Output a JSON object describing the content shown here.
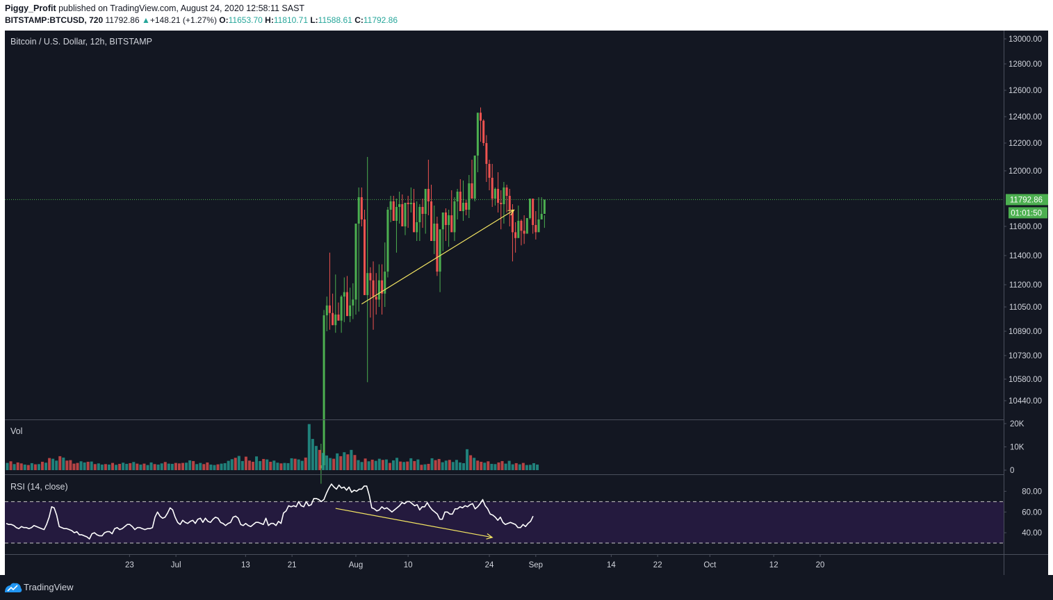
{
  "header": {
    "author": "Piggy_Profit",
    "published_text": "published on TradingView.com, August 24, 2020 12:58:11 SAST",
    "symbol": "BITSTAMP:BTCUSD, 720",
    "last": "11792.86",
    "change_arrow": "▲",
    "change": "+148.21 (+1.27%)",
    "o_label": "O:",
    "o_value": "11653.70",
    "h_label": "H:",
    "h_value": "11810.71",
    "l_label": "L:",
    "l_value": "11588.61",
    "c_label": "C:",
    "c_value": "11792.86"
  },
  "footer": {
    "brand": "TradingView",
    "logo_icon": "tradingview-logo-icon"
  },
  "colors": {
    "background": "#131722",
    "up": "#26a69a",
    "down": "#ef5350",
    "candle_up": "#4caf50",
    "candle_down": "#ef5350",
    "vol_up": "#26a69a",
    "vol_down": "#ef5350",
    "trendline": "#f5e663",
    "price_line": "#4caf50",
    "rsi_line": "#ffffff",
    "rsi_band": "#241a3e",
    "text": "#d1d4dc",
    "border": "#4a4f5c"
  },
  "chart_data": {
    "type": "candlestick",
    "title": "Bitcoin / U.S. Dollar, 12h, BITSTAMP",
    "price_axis": {
      "ticks": [
        "13000.00",
        "12800.00",
        "12600.00",
        "12400.00",
        "12200.00",
        "12000.00",
        "11600.00",
        "11400.00",
        "11200.00",
        "11050.00",
        "10890.00",
        "10730.00",
        "10580.00",
        "10440.00"
      ],
      "tick_values": [
        13000,
        12800,
        12600,
        12400,
        12200,
        12000,
        11600,
        11400,
        11200,
        11050,
        10890,
        10730,
        10580,
        10440
      ],
      "last_price_label": "11792.86",
      "countdown_label": "01:01:50",
      "last_price": 11792.86
    },
    "x_axis": {
      "labels": [
        "23",
        "Jul",
        "13",
        "21",
        "Aug",
        "10",
        "24",
        "Sep",
        "14",
        "22",
        "Oct",
        "12",
        "20"
      ],
      "label_dates": [
        "2020-06-23",
        "2020-07-01",
        "2020-07-13",
        "2020-07-21",
        "2020-08-01",
        "2020-08-10",
        "2020-08-24",
        "2020-09-01",
        "2020-09-14",
        "2020-09-22",
        "2020-10-01",
        "2020-10-12",
        "2020-10-20"
      ]
    },
    "candles": {
      "start": "2020-07-26 00:00",
      "interval_hours": 12,
      "open": [
        10000,
        10020,
        10995,
        11060,
        11010,
        10930,
        11000,
        10960,
        11120,
        11150,
        10990,
        11060,
        11100,
        11620,
        11810,
        11650,
        11130,
        11280,
        11230,
        11120,
        11100,
        11230,
        11140,
        11290,
        11720,
        11780,
        11640,
        11740,
        11760,
        11600,
        11770,
        11760,
        11770,
        11560,
        11630,
        11740,
        11690,
        11870,
        11780,
        11500,
        11620,
        11290,
        11580,
        11700,
        11610,
        11680,
        11560,
        11780,
        11850,
        11710,
        11770,
        11720,
        11910,
        11800,
        12110,
        12430,
        12370,
        12200,
        12050,
        11950,
        11800,
        11870,
        11770,
        11760,
        11880,
        11820,
        11720,
        11560,
        11520,
        11640,
        11570,
        11550,
        11660,
        11800,
        11610,
        11560,
        11650,
        11690
      ],
      "high": [
        10160,
        11030,
        11120,
        11420,
        11140,
        11270,
        11080,
        11130,
        11250,
        11260,
        11180,
        11210,
        11430,
        11880,
        11880,
        11720,
        12100,
        11320,
        11360,
        11280,
        11340,
        11340,
        11490,
        11740,
        11820,
        11820,
        11800,
        11850,
        11830,
        11720,
        11820,
        11880,
        11870,
        11780,
        11760,
        11800,
        11800,
        12080,
        11900,
        11750,
        11670,
        11460,
        11610,
        11730,
        11720,
        11860,
        11810,
        11870,
        11940,
        11930,
        11790,
        11970,
        12080,
        11990,
        12290,
        12470,
        12380,
        12260,
        12080,
        12050,
        11880,
        11990,
        11860,
        11920,
        11900,
        11870,
        11760,
        11630,
        11750,
        11650,
        11680,
        11660,
        11790,
        11800,
        11710,
        11810,
        11810,
        11680
      ],
      "low": [
        9900,
        9990,
        10890,
        10900,
        10930,
        10880,
        10960,
        10880,
        10950,
        10990,
        10950,
        10970,
        11000,
        11020,
        11600,
        11530,
        10560,
        10980,
        10900,
        11000,
        11050,
        11000,
        11050,
        11250,
        11630,
        11660,
        11420,
        11620,
        11600,
        11540,
        11590,
        11700,
        11720,
        11500,
        11500,
        11590,
        11550,
        11680,
        11560,
        11410,
        11260,
        11150,
        11430,
        11500,
        11460,
        11600,
        11500,
        11650,
        11730,
        11640,
        11680,
        11660,
        11840,
        11780,
        11990,
        12210,
        12180,
        11920,
        11860,
        11740,
        11750,
        11700,
        11580,
        11620,
        11700,
        11600,
        11360,
        11420,
        11530,
        11470,
        11480,
        11550,
        11650,
        11550,
        11510,
        11580,
        11650,
        11590
      ],
      "close": [
        10020,
        10995,
        11060,
        11010,
        10930,
        11000,
        10960,
        11120,
        11150,
        10990,
        11060,
        11100,
        11620,
        11810,
        11650,
        11130,
        11280,
        11230,
        11120,
        11100,
        11230,
        11140,
        11290,
        11720,
        11780,
        11640,
        11740,
        11760,
        11600,
        11770,
        11760,
        11770,
        11560,
        11630,
        11740,
        11690,
        11870,
        11780,
        11500,
        11620,
        11290,
        11580,
        11700,
        11610,
        11680,
        11560,
        11780,
        11850,
        11710,
        11770,
        11720,
        11910,
        11800,
        12110,
        12430,
        12370,
        12200,
        12050,
        11950,
        11800,
        11870,
        11770,
        11760,
        11880,
        11820,
        11720,
        11560,
        11520,
        11640,
        11570,
        11550,
        11660,
        11800,
        11610,
        11560,
        11650,
        11690,
        11792.86
      ]
    },
    "volume": {
      "axis_ticks": [
        "20K",
        "10K",
        "0"
      ],
      "tick_values": [
        20000,
        10000,
        0
      ],
      "label": "Vol",
      "values": [
        3100,
        3800,
        2600,
        3300,
        2900,
        2400,
        2200,
        3000,
        2500,
        2600,
        3600,
        3200,
        5200,
        4900,
        4100,
        6000,
        5400,
        4100,
        4300,
        2800,
        3100,
        3800,
        3300,
        3600,
        3700,
        2600,
        2900,
        2400,
        2600,
        2400,
        3100,
        2300,
        2700,
        3200,
        2700,
        3000,
        3500,
        2800,
        2400,
        2800,
        2200,
        3300,
        2600,
        2400,
        2900,
        3500,
        2800,
        2700,
        3100,
        2900,
        3100,
        3200,
        4200,
        3900,
        2600,
        3100,
        2600,
        3300,
        2400,
        2200,
        2500,
        2800,
        3000,
        4000,
        4700,
        5300,
        6100,
        3900,
        5800,
        4100,
        3600,
        5900,
        3900,
        4800,
        4600,
        3600,
        4100,
        3200,
        2900,
        3100,
        3000,
        5100,
        4900,
        4600,
        4000,
        5400,
        19800,
        13400,
        10400,
        8700,
        7400,
        6300,
        5200,
        4900,
        7200,
        6000,
        7700,
        6800,
        8700,
        6500,
        4300,
        3500,
        5000,
        3800,
        4500,
        4000,
        4900,
        4400,
        4600,
        3100,
        4200,
        5300,
        3700,
        3500,
        3700,
        5100,
        3900,
        4600,
        2300,
        2500,
        2700,
        5100,
        4300,
        4800,
        3400,
        4100,
        4400,
        3500,
        4400,
        3300,
        3000,
        9000,
        6400,
        5300,
        4100,
        3600,
        3200,
        3800,
        2700,
        2600,
        3300,
        3900,
        2800,
        4000,
        2500,
        3000,
        2500,
        3100,
        2200,
        2300,
        3000,
        2400
      ],
      "up": [
        1,
        0,
        1,
        0,
        0,
        1,
        0,
        1,
        0,
        1,
        0,
        1,
        0,
        1,
        1,
        0,
        1,
        0,
        0,
        0,
        0,
        1,
        1,
        0,
        1,
        0,
        1,
        1,
        0,
        1,
        0,
        1,
        0,
        1,
        1,
        0,
        1,
        0,
        1,
        0,
        1,
        1,
        0,
        1,
        1,
        0,
        1,
        1,
        0,
        0,
        0,
        1,
        1,
        0,
        1,
        1,
        0,
        0,
        1,
        1,
        0,
        1,
        1,
        1,
        1,
        0,
        1,
        1,
        0,
        0,
        0,
        1,
        1,
        0,
        1,
        0,
        1,
        1,
        0,
        1,
        1,
        1,
        0,
        1,
        1,
        0,
        1,
        1,
        1,
        0,
        1,
        1,
        1,
        0,
        1,
        0,
        1,
        0,
        1,
        0,
        1,
        1,
        0,
        1,
        0,
        1,
        1,
        0,
        1,
        0,
        1,
        1,
        0,
        1,
        0,
        1,
        0,
        1,
        0,
        1,
        0,
        1,
        0,
        0,
        1,
        1,
        0,
        1,
        1,
        1,
        1,
        1,
        0,
        1,
        0,
        0,
        1,
        0,
        1,
        1,
        0,
        0,
        1,
        1,
        1,
        0,
        1,
        0,
        1,
        1,
        1,
        1
      ]
    },
    "rsi": {
      "label": "RSI (14, close)",
      "axis_ticks": [
        "80.00",
        "60.00",
        "40.00"
      ],
      "tick_values": [
        80,
        60,
        40
      ],
      "band": [
        30,
        70
      ],
      "range": [
        22,
        93
      ],
      "values": [
        49,
        48,
        48,
        47,
        45,
        44,
        46,
        45,
        45,
        44,
        45,
        47,
        46,
        45,
        44,
        43,
        48,
        55,
        65,
        64,
        57,
        46,
        45,
        44,
        44,
        43,
        42,
        40,
        41,
        38,
        38,
        37,
        36,
        34,
        39,
        40,
        38,
        37,
        37,
        40,
        41,
        41,
        39,
        44,
        45,
        43,
        44,
        46,
        48,
        48,
        46,
        43,
        45,
        45,
        44,
        43,
        44,
        44,
        45,
        55,
        60,
        56,
        54,
        55,
        59,
        64,
        62,
        55,
        50,
        48,
        52,
        50,
        49,
        51,
        52,
        49,
        53,
        54,
        50,
        54,
        51,
        50,
        53,
        55,
        54,
        50,
        49,
        47,
        49,
        50,
        55,
        56,
        54,
        48,
        47,
        49,
        47,
        46,
        48,
        50,
        50,
        49,
        48,
        54,
        47,
        49,
        49,
        47,
        51,
        49,
        59,
        61,
        66,
        65,
        66,
        65,
        70,
        66,
        65,
        70,
        66,
        67,
        73,
        73,
        72,
        70,
        72,
        78,
        83,
        87,
        84,
        82,
        86,
        83,
        84,
        81,
        84,
        79,
        81,
        80,
        82,
        82,
        85,
        85,
        76,
        64,
        63,
        61,
        62,
        65,
        63,
        64,
        62,
        60,
        62,
        64,
        66,
        69,
        68,
        70,
        70,
        68,
        66,
        67,
        62,
        65,
        65,
        69,
        65,
        62,
        60,
        58,
        53,
        53,
        60,
        60,
        58,
        58,
        63,
        63,
        65,
        64,
        66,
        65,
        67,
        68,
        63,
        65,
        68,
        72,
        66,
        63,
        58,
        57,
        55,
        52,
        55,
        50,
        48,
        49,
        50,
        49,
        48,
        45,
        45,
        48,
        46,
        49,
        51,
        56
      ]
    },
    "annotations": [
      {
        "type": "trendline",
        "panel": "price",
        "from": {
          "date": "2020-08-02 00:00",
          "price": 11070
        },
        "to": {
          "date": "2020-08-28 06:00",
          "price": 11718
        }
      },
      {
        "type": "trendline",
        "panel": "rsi",
        "from": {
          "date": "2020-07-28 12:00",
          "value": 63.5
        },
        "to": {
          "date": "2020-08-24 12:00",
          "value": 35.5
        }
      }
    ]
  }
}
